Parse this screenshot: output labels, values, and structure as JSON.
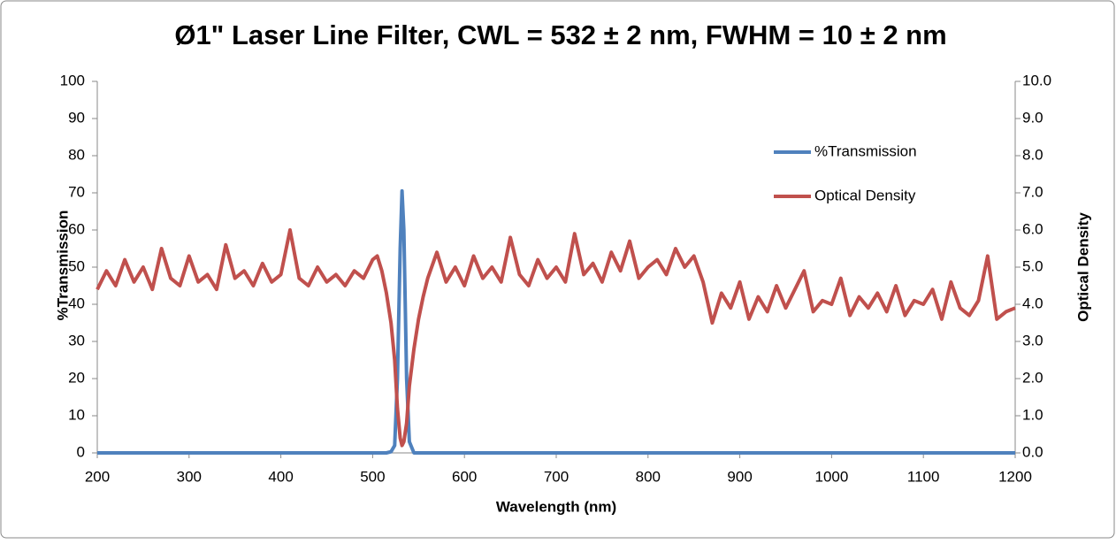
{
  "chart_data": {
    "type": "line",
    "title": "Ø1\" Laser Line Filter, CWL = 532 ± 2 nm, FWHM = 10 ± 2 nm",
    "x_label": "Wavelength (nm)",
    "y_label": "%Transmission",
    "y2_label": "Optical Density",
    "x": [
      200,
      210,
      220,
      230,
      240,
      250,
      260,
      270,
      280,
      290,
      300,
      310,
      320,
      330,
      340,
      350,
      360,
      370,
      380,
      390,
      400,
      410,
      420,
      430,
      440,
      450,
      460,
      470,
      480,
      490,
      500,
      505,
      510,
      515,
      520,
      524,
      527,
      530,
      532,
      534,
      537,
      540,
      545,
      550,
      555,
      560,
      570,
      580,
      590,
      600,
      610,
      620,
      630,
      640,
      650,
      660,
      670,
      680,
      690,
      700,
      710,
      720,
      730,
      740,
      750,
      760,
      770,
      780,
      790,
      800,
      810,
      820,
      830,
      840,
      850,
      860,
      870,
      880,
      890,
      900,
      910,
      920,
      930,
      940,
      950,
      960,
      970,
      980,
      990,
      1000,
      1010,
      1020,
      1030,
      1040,
      1050,
      1060,
      1070,
      1080,
      1090,
      1100,
      1110,
      1120,
      1130,
      1140,
      1150,
      1160,
      1170,
      1180,
      1190,
      1200
    ],
    "series": [
      {
        "name": "%Transmission",
        "color": "#4f81bd",
        "axis": "y",
        "values": [
          0,
          0,
          0,
          0,
          0,
          0,
          0,
          0,
          0,
          0,
          0,
          0,
          0,
          0,
          0,
          0,
          0,
          0,
          0,
          0,
          0,
          0,
          0,
          0,
          0,
          0,
          0,
          0,
          0,
          0,
          0,
          0,
          0,
          0,
          0.3,
          2,
          20,
          55,
          70.5,
          60,
          20,
          3,
          0,
          0,
          0,
          0,
          0,
          0,
          0,
          0,
          0,
          0,
          0,
          0,
          0,
          0,
          0,
          0,
          0,
          0,
          0,
          0,
          0,
          0,
          0,
          0,
          0,
          0,
          0,
          0,
          0,
          0,
          0,
          0,
          0,
          0,
          0,
          0,
          0,
          0,
          0,
          0,
          0,
          0,
          0,
          0,
          0,
          0,
          0,
          0,
          0,
          0,
          0,
          0,
          0,
          0,
          0,
          0,
          0,
          0,
          0,
          0,
          0,
          0,
          0,
          0,
          0,
          0,
          0,
          0
        ]
      },
      {
        "name": "Optical Density",
        "color": "#c0504d",
        "axis": "y2",
        "values": [
          4.4,
          4.9,
          4.5,
          5.2,
          4.6,
          5.0,
          4.4,
          5.5,
          4.7,
          4.5,
          5.3,
          4.6,
          4.8,
          4.4,
          5.6,
          4.7,
          4.9,
          4.5,
          5.1,
          4.6,
          4.8,
          6.0,
          4.7,
          4.5,
          5.0,
          4.6,
          4.8,
          4.5,
          4.9,
          4.7,
          5.2,
          5.3,
          4.9,
          4.3,
          3.5,
          2.5,
          1.2,
          0.4,
          0.2,
          0.3,
          0.8,
          1.8,
          2.8,
          3.6,
          4.2,
          4.7,
          5.4,
          4.6,
          5.0,
          4.5,
          5.3,
          4.7,
          5.0,
          4.6,
          5.8,
          4.8,
          4.5,
          5.2,
          4.7,
          5.0,
          4.6,
          5.9,
          4.8,
          5.1,
          4.6,
          5.4,
          4.9,
          5.7,
          4.7,
          5.0,
          5.2,
          4.8,
          5.5,
          5.0,
          5.3,
          4.6,
          3.5,
          4.3,
          3.9,
          4.6,
          3.6,
          4.2,
          3.8,
          4.5,
          3.9,
          4.4,
          4.9,
          3.8,
          4.1,
          4.0,
          4.7,
          3.7,
          4.2,
          3.9,
          4.3,
          3.8,
          4.5,
          3.7,
          4.1,
          4.0,
          4.4,
          3.6,
          4.6,
          3.9,
          3.7,
          4.1,
          5.3,
          3.6,
          3.8,
          3.9
        ]
      }
    ],
    "xlim": [
      200,
      1200
    ],
    "xticks": [
      200,
      300,
      400,
      500,
      600,
      700,
      800,
      900,
      1000,
      1100,
      1200
    ],
    "ylim": [
      0,
      100
    ],
    "yticks": [
      0,
      10,
      20,
      30,
      40,
      50,
      60,
      70,
      80,
      90,
      100
    ],
    "y2lim": [
      0,
      10
    ],
    "y2ticks": [
      {
        "value": 0,
        "label": "0.0"
      },
      {
        "value": 1,
        "label": "1.0"
      },
      {
        "value": 2,
        "label": "2.0"
      },
      {
        "value": 3,
        "label": "3.0"
      },
      {
        "value": 4,
        "label": "4.0"
      },
      {
        "value": 5,
        "label": "5.0"
      },
      {
        "value": 6,
        "label": "6.0"
      },
      {
        "value": 7,
        "label": "7.0"
      },
      {
        "value": 8,
        "label": "8.0"
      },
      {
        "value": 9,
        "label": "9.0"
      },
      {
        "value": 10,
        "label": "10.0"
      }
    ],
    "grid": false,
    "legend": "upper right"
  }
}
